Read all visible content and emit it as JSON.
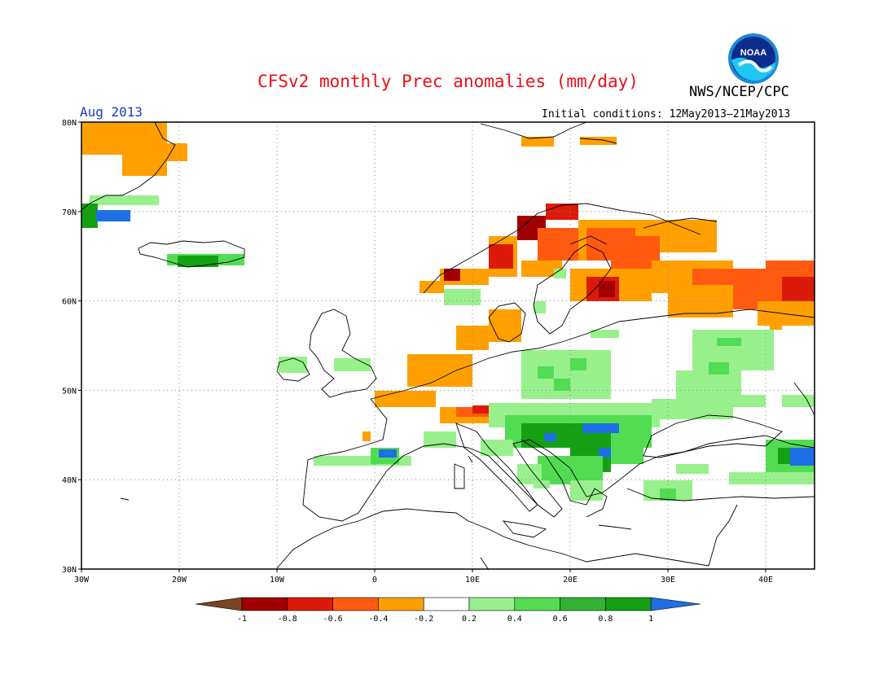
{
  "header": {
    "title": "CFSv2 monthly Prec anomalies (mm/day)",
    "agency": "NWS/NCEP/CPC",
    "period": "Aug 2013",
    "initial_conditions": "Initial conditions: 12May2013–21May2013",
    "logo_text": "NOAA"
  },
  "map": {
    "lon_range": [
      -30,
      45
    ],
    "lat_range": [
      30,
      80
    ],
    "lon_ticks": [
      {
        "value": -30,
        "label": "30W"
      },
      {
        "value": -20,
        "label": "20W"
      },
      {
        "value": -10,
        "label": "10W"
      },
      {
        "value": 0,
        "label": "0"
      },
      {
        "value": 10,
        "label": "10E"
      },
      {
        "value": 20,
        "label": "20E"
      },
      {
        "value": 30,
        "label": "30E"
      },
      {
        "value": 40,
        "label": "40E"
      }
    ],
    "lat_ticks": [
      {
        "value": 30,
        "label": "30N"
      },
      {
        "value": 40,
        "label": "40N"
      },
      {
        "value": 50,
        "label": "50N"
      },
      {
        "value": 60,
        "label": "60N"
      },
      {
        "value": 70,
        "label": "70N"
      },
      {
        "value": 80,
        "label": "80N"
      }
    ],
    "grid": "dotted"
  },
  "legend": {
    "labels": [
      "-1",
      "-0.8",
      "-0.6",
      "-0.4",
      "-0.2",
      "0.2",
      "0.4",
      "0.6",
      "0.8",
      "1"
    ],
    "colors": [
      "#7a4523",
      "#a00000",
      "#dc1a0a",
      "#ff5a0f",
      "#ffa000",
      "#ffffff",
      "#98f08c",
      "#52dc52",
      "#32b432",
      "#13a013",
      "#1e6ee6"
    ]
  },
  "colors": {
    "c1": "#ff5a0f",
    "c2": "#dc1a0a",
    "c3": "#a00000",
    "o": "#ffa000",
    "g1": "#98f08c",
    "g2": "#52dc52",
    "g3": "#13a013",
    "b": "#1e6ee6"
  }
}
